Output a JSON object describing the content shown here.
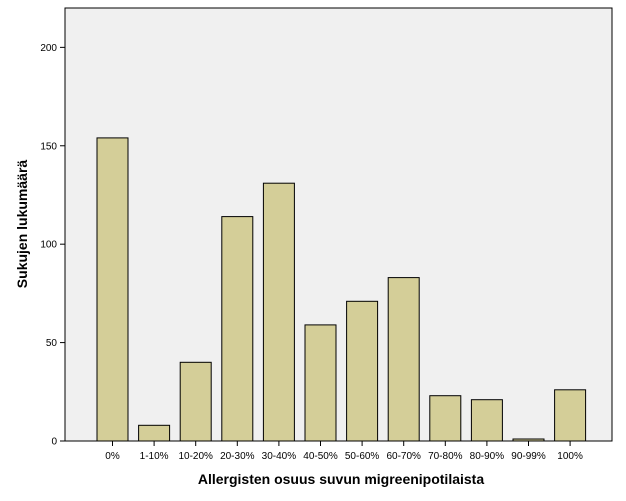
{
  "chart_data": {
    "type": "bar",
    "title": "",
    "xlabel": "Allergisten osuus suvun migreenipotilaista",
    "ylabel": "Sukujen lukumäärä",
    "categories": [
      "0%",
      "1-10%",
      "10-20%",
      "20-30%",
      "30-40%",
      "40-50%",
      "50-60%",
      "60-70%",
      "70-80%",
      "80-90%",
      "90-99%",
      "100%"
    ],
    "values": [
      154,
      8,
      40,
      114,
      131,
      59,
      71,
      83,
      23,
      21,
      1,
      26
    ],
    "ylim": [
      0,
      220
    ],
    "yticks": [
      0,
      50,
      100,
      150,
      200
    ],
    "grid": false,
    "colors": {
      "bar_fill": "#d4ce98",
      "bar_stroke": "#000000",
      "plot_background": "#f0f0f0",
      "plot_border": "#000000"
    }
  }
}
